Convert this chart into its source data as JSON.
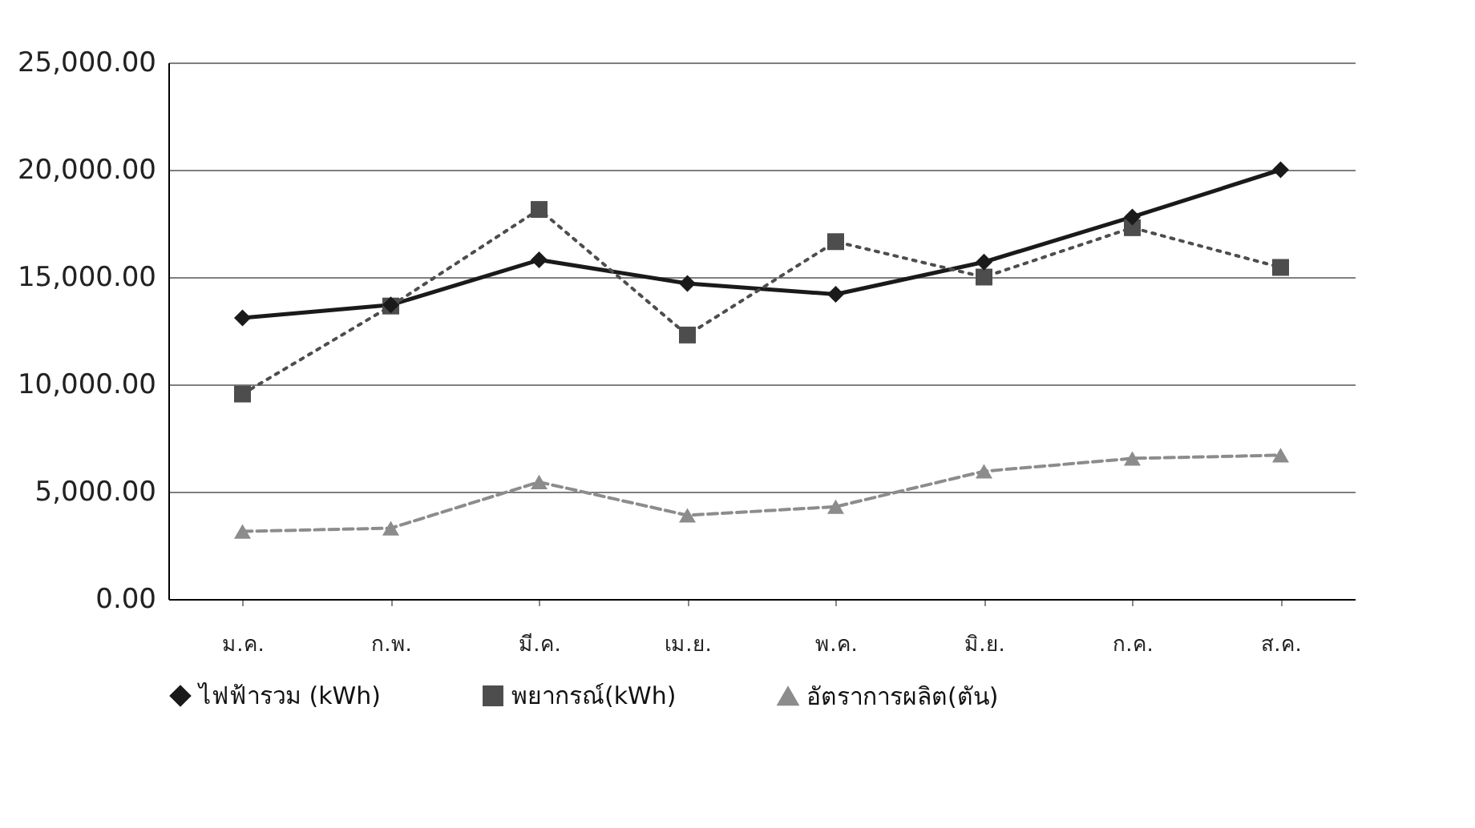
{
  "chart_data": {
    "type": "line",
    "categories": [
      "ม.ค.",
      "ก.พ.",
      "มี.ค.",
      "เม.ย.",
      "พ.ค.",
      "มิ.ย.",
      "ก.ค.",
      "ส.ค."
    ],
    "series": [
      {
        "name": "ไฟฟ้ารวม (kWh)",
        "color": "#1a1a1a",
        "marker": "diamond",
        "line_style": "solid",
        "values": [
          13100,
          13700,
          15800,
          14700,
          14200,
          15700,
          17800,
          20000
        ]
      },
      {
        "name": "พยากรณ์(kWh)",
        "color": "#4d4d4d",
        "marker": "square",
        "line_style": "dotted",
        "values": [
          9550,
          13650,
          18150,
          12300,
          16650,
          15000,
          17300,
          15450
        ]
      },
      {
        "name": "อัตราการผลิต(ตัน)",
        "color": "#8c8c8c",
        "marker": "triangle",
        "line_style": "dashed",
        "values": [
          3150,
          3300,
          5450,
          3900,
          4300,
          5950,
          6550,
          6700
        ]
      }
    ],
    "ylim": [
      0,
      25000
    ],
    "yticks": [
      {
        "value": 0,
        "label": "0.00"
      },
      {
        "value": 5000,
        "label": "5,000.00"
      },
      {
        "value": 10000,
        "label": "10,000.00"
      },
      {
        "value": 15000,
        "label": "15,000.00"
      },
      {
        "value": 20000,
        "label": "20,000.00"
      },
      {
        "value": 25000,
        "label": "25,000.00"
      }
    ],
    "grid": "y",
    "legend": "bottom"
  }
}
